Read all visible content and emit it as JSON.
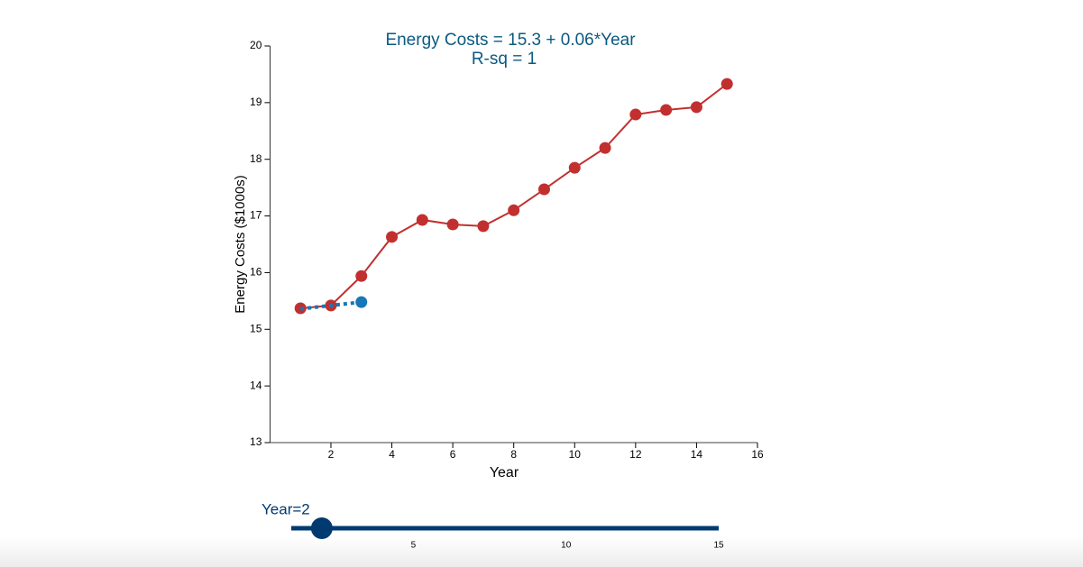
{
  "chart_data": {
    "type": "line",
    "title": [
      "Energy Costs = 15.3 + 0.06*Year",
      "R-sq = 1"
    ],
    "x_label": "Year",
    "y_label": "Energy Costs ($1000s)",
    "xlim": [
      0,
      16
    ],
    "xticks": [
      2,
      4,
      6,
      8,
      10,
      12,
      14,
      16
    ],
    "ylim": [
      13,
      20
    ],
    "yticks": [
      13,
      14,
      15,
      16,
      17,
      18,
      19,
      20
    ],
    "series": [
      {
        "color": "#c1302f",
        "style": "solid",
        "markers": "all",
        "x": [
          1,
          2,
          3,
          4,
          5,
          6,
          7,
          8,
          9,
          10,
          11,
          12,
          13,
          14,
          15
        ],
        "values": [
          15.37,
          15.42,
          15.94,
          16.63,
          16.93,
          16.85,
          16.82,
          17.1,
          17.47,
          17.85,
          18.2,
          18.79,
          18.87,
          18.92,
          19.33
        ]
      },
      {
        "color": "#1777b8",
        "style": "dotted",
        "markers": "last",
        "x": [
          1,
          3
        ],
        "values": [
          15.36,
          15.48
        ]
      }
    ]
  },
  "slider": {
    "label": "Year=2",
    "value": 2,
    "min": 1,
    "max": 15,
    "ticks": [
      5,
      10,
      15
    ],
    "color": "#003a70"
  }
}
